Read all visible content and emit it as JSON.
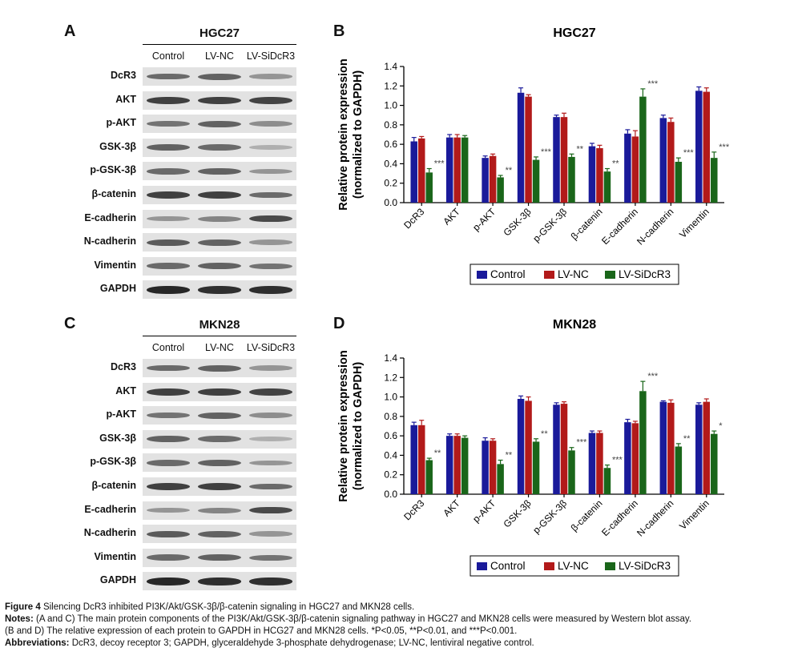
{
  "panels": {
    "a": {
      "letter": "A",
      "title": "HGC27"
    },
    "b": {
      "letter": "B",
      "title": "HGC27"
    },
    "c": {
      "letter": "C",
      "title": "MKN28"
    },
    "d": {
      "letter": "D",
      "title": "MKN28"
    }
  },
  "blots": {
    "lanes": [
      "Control",
      "LV-NC",
      "LV-SiDcR3"
    ],
    "proteins": [
      "DcR3",
      "AKT",
      "p-AKT",
      "GSK-3β",
      "p-GSK-3β",
      "β-catenin",
      "E-cadherin",
      "N-cadherin",
      "Vimentin",
      "GAPDH"
    ]
  },
  "chart_data": [
    {
      "type": "bar",
      "title": "HGC27",
      "ylabel": "Relative protein expression (normalized to GAPDH)",
      "ylim": [
        0,
        1.4
      ],
      "yticks": [
        "0.0",
        "0.2",
        "0.4",
        "0.6",
        "0.8",
        "1.0",
        "1.2",
        "1.4"
      ],
      "categories": [
        "DcR3",
        "AKT",
        "p-AKT",
        "GSK-3β",
        "p-GSK-3β",
        "β-catenin",
        "E-cadherin",
        "N-cadherin",
        "Vimentin"
      ],
      "series": [
        {
          "name": "Control",
          "color": "#1a1a9a",
          "values": [
            0.63,
            0.67,
            0.46,
            1.13,
            0.88,
            0.58,
            0.71,
            0.87,
            1.15
          ],
          "errors": [
            0.04,
            0.03,
            0.02,
            0.05,
            0.02,
            0.03,
            0.04,
            0.03,
            0.04
          ]
        },
        {
          "name": "LV-NC",
          "color": "#b21a1a",
          "values": [
            0.66,
            0.67,
            0.48,
            1.09,
            0.88,
            0.56,
            0.68,
            0.83,
            1.14
          ],
          "errors": [
            0.02,
            0.03,
            0.02,
            0.02,
            0.04,
            0.03,
            0.06,
            0.04,
            0.04
          ]
        },
        {
          "name": "LV-SiDcR3",
          "color": "#1a661a",
          "values": [
            0.31,
            0.67,
            0.26,
            0.44,
            0.47,
            0.32,
            1.09,
            0.42,
            0.46
          ],
          "errors": [
            0.04,
            0.02,
            0.02,
            0.03,
            0.03,
            0.03,
            0.08,
            0.04,
            0.06
          ]
        }
      ],
      "significance": [
        "***",
        "",
        "**",
        "***",
        "**",
        "**",
        "***",
        "***",
        "***"
      ],
      "legend": "bottom"
    },
    {
      "type": "bar",
      "title": "MKN28",
      "ylabel": "Relative protein expression (normalized to GAPDH)",
      "ylim": [
        0,
        1.4
      ],
      "yticks": [
        "0.0",
        "0.2",
        "0.4",
        "0.6",
        "0.8",
        "1.0",
        "1.2",
        "1.4"
      ],
      "categories": [
        "DcR3",
        "AKT",
        "p-AKT",
        "GSK-3β",
        "p-GSK-3β",
        "β-catenin",
        "E-cadherin",
        "N-cadherin",
        "Vimentin"
      ],
      "series": [
        {
          "name": "Control",
          "color": "#1a1a9a",
          "values": [
            0.71,
            0.6,
            0.55,
            0.98,
            0.92,
            0.63,
            0.74,
            0.95,
            0.92
          ],
          "errors": [
            0.03,
            0.02,
            0.03,
            0.03,
            0.02,
            0.02,
            0.03,
            0.01,
            0.02
          ]
        },
        {
          "name": "LV-NC",
          "color": "#b21a1a",
          "values": [
            0.71,
            0.6,
            0.55,
            0.96,
            0.93,
            0.63,
            0.73,
            0.94,
            0.95
          ],
          "errors": [
            0.05,
            0.02,
            0.02,
            0.04,
            0.02,
            0.02,
            0.02,
            0.03,
            0.03
          ]
        },
        {
          "name": "LV-SiDcR3",
          "color": "#1a661a",
          "values": [
            0.35,
            0.58,
            0.31,
            0.54,
            0.45,
            0.27,
            1.06,
            0.49,
            0.62
          ],
          "errors": [
            0.02,
            0.02,
            0.04,
            0.03,
            0.03,
            0.03,
            0.1,
            0.03,
            0.03
          ]
        }
      ],
      "significance": [
        "**",
        "",
        "**",
        "**",
        "***",
        "***",
        "***",
        "**",
        "*"
      ],
      "legend": "bottom"
    }
  ],
  "caption": {
    "fig_label": "Figure 4",
    "fig_text": "Silencing DcR3 inhibited PI3K/Akt/GSK-3β/β-catenin signaling in HGC27 and MKN28 cells.",
    "notes_label": "Notes:",
    "notes_1": "(A and C) The main protein components of the PI3K/Akt/GSK-3β/β-catenin signaling pathway in HGC27 and MKN28 cells were measured by Western blot assay.",
    "notes_2": "(B and D) The relative expression of each protein to GAPDH in HCG27 and MKN28 cells. *P<0.05, **P<0.01, and ***P<0.001.",
    "abbr_label": "Abbreviations:",
    "abbr_text": "DcR3, decoy receptor 3; GAPDH, glyceraldehyde 3-phosphate dehydrogenase; LV-NC, lentiviral negative control."
  }
}
